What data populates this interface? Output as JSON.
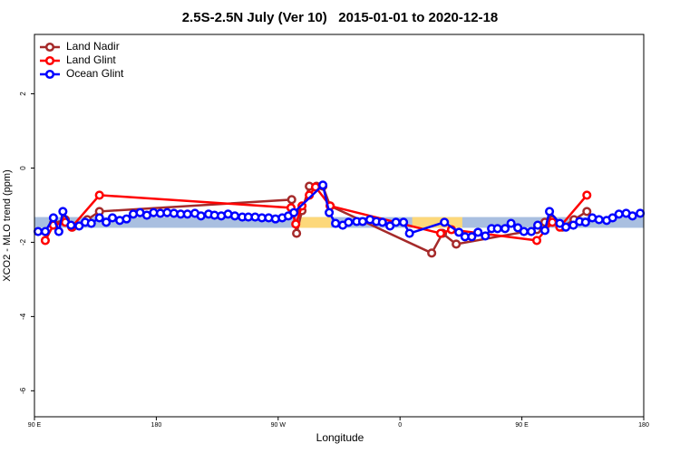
{
  "chart_data": {
    "type": "line",
    "title": "2.5S-2.5N July (Ver 10)   2015-01-01 to 2020-12-18",
    "xlabel": "Longitude",
    "ylabel": "XCO2 - MLO trend (ppm)",
    "xlim": [
      90,
      540
    ],
    "ylim": [
      -6.7,
      3.6
    ],
    "xticks": [
      {
        "value": 90,
        "label": "90 E"
      },
      180,
      {
        "value": 270,
        "label": "90 W"
      },
      {
        "value": 360,
        "label": "0"
      },
      {
        "value": 450,
        "label": "90 E"
      },
      {
        "value": 540,
        "label": "180"
      }
    ],
    "yticks": [
      2,
      0,
      -2,
      -4,
      -6
    ],
    "legend": "top-left",
    "bands": [
      {
        "xlim": [
          90,
          540
        ],
        "ylim": [
          -1.61,
          -1.32
        ],
        "color": "#a9bfe0"
      },
      {
        "xlim": [
          285.6,
          309
        ],
        "ylim": [
          -1.61,
          -1.32
        ],
        "color": "#fdd87a"
      },
      {
        "xlim": [
          369,
          406
        ],
        "ylim": [
          -1.61,
          -1.32
        ],
        "color": "#fdd87a"
      }
    ],
    "series": [
      {
        "name": "Land Nadir",
        "color": "#a52a2a",
        "x": [
          104,
          112.8,
          118,
          129,
          138,
          280,
          283.6,
          287.6,
          293,
          298.3,
          303,
          308.4,
          383.4,
          391.4,
          401.5,
          461,
          467,
          472.5,
          479.8,
          488.5,
          498
        ],
        "values": [
          -1.49,
          -1.39,
          -1.59,
          -1.39,
          -1.17,
          -0.85,
          -1.76,
          -1.15,
          -0.49,
          -0.49,
          -0.49,
          -1.02,
          -2.29,
          -1.76,
          -2.05,
          -1.66,
          -1.46,
          -1.39,
          -1.59,
          -1.39,
          -1.17
        ]
      },
      {
        "name": "Land Glint",
        "color": "#ff0000",
        "x": [
          98,
          104,
          112.8,
          117.5,
          138,
          279.5,
          283,
          287.6,
          293,
          297.6,
          308.4,
          390,
          398,
          461,
          472.5,
          478,
          498
        ],
        "values": [
          -1.95,
          -1.54,
          -1.46,
          -1.59,
          -0.73,
          -1.07,
          -1.51,
          -1.02,
          -0.73,
          -0.51,
          -1.02,
          -1.76,
          -1.66,
          -1.95,
          -1.46,
          -1.59,
          -0.73
        ]
      },
      {
        "name": "Ocean Glint",
        "color": "#0000ff",
        "x": [
          92.7,
          98,
          104,
          108,
          111,
          117,
          123,
          127.5,
          132,
          138,
          143,
          147.6,
          153,
          158,
          163,
          168,
          173,
          178,
          183,
          188,
          193,
          198,
          203,
          208.5,
          213,
          218.6,
          223,
          228,
          233,
          238,
          243.5,
          248,
          253,
          258,
          263,
          268,
          273,
          277.5,
          281.6,
          303,
          307.7,
          312.4,
          317.7,
          322,
          328,
          332.4,
          337.8,
          342.5,
          347,
          352.6,
          357,
          362.6,
          367,
          392.8,
          403.5,
          408,
          413,
          417.6,
          423,
          427.6,
          432,
          437.6,
          442,
          447,
          451.5,
          457,
          461.7,
          467,
          470.4,
          478,
          482.5,
          488,
          492.6,
          497,
          502,
          507,
          512.6,
          517,
          521.7,
          527,
          531.7,
          537.4
        ],
        "values": [
          -1.71,
          -1.71,
          -1.34,
          -1.71,
          -1.17,
          -1.54,
          -1.56,
          -1.46,
          -1.49,
          -1.34,
          -1.46,
          -1.34,
          -1.41,
          -1.37,
          -1.24,
          -1.2,
          -1.27,
          -1.2,
          -1.22,
          -1.2,
          -1.22,
          -1.24,
          -1.24,
          -1.22,
          -1.29,
          -1.24,
          -1.27,
          -1.29,
          -1.24,
          -1.29,
          -1.32,
          -1.32,
          -1.32,
          -1.34,
          -1.34,
          -1.37,
          -1.34,
          -1.29,
          -1.2,
          -0.46,
          -1.2,
          -1.49,
          -1.54,
          -1.46,
          -1.44,
          -1.44,
          -1.39,
          -1.44,
          -1.46,
          -1.56,
          -1.46,
          -1.46,
          -1.76,
          -1.46,
          -1.73,
          -1.85,
          -1.85,
          -1.73,
          -1.83,
          -1.63,
          -1.63,
          -1.63,
          -1.49,
          -1.61,
          -1.71,
          -1.71,
          -1.54,
          -1.68,
          -1.17,
          -1.49,
          -1.59,
          -1.54,
          -1.44,
          -1.46,
          -1.34,
          -1.39,
          -1.41,
          -1.34,
          -1.24,
          -1.22,
          -1.29,
          -1.22
        ]
      }
    ]
  }
}
